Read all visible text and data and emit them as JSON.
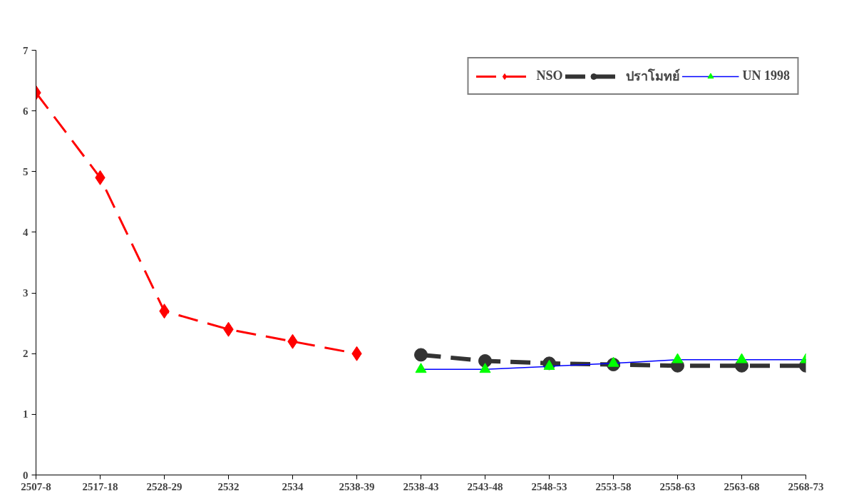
{
  "chart_data": {
    "type": "line",
    "categories": [
      "2507-8",
      "2517-18",
      "2528-29",
      "2532",
      "2534",
      "2538-39",
      "2538-43",
      "2543-48",
      "2548-53",
      "2553-58",
      "2558-63",
      "2563-68",
      "2568-73"
    ],
    "series": [
      {
        "name": "NSO",
        "color": "#ff0000",
        "marker": "diamond",
        "line_style": "dashed",
        "values": [
          6.3,
          4.9,
          2.7,
          2.4,
          2.2,
          2.0,
          null,
          null,
          null,
          null,
          null,
          null,
          null
        ]
      },
      {
        "name": "ปราโมทย์",
        "color": "#333333",
        "marker": "circle",
        "line_style": "dashed",
        "values": [
          null,
          null,
          null,
          null,
          null,
          null,
          1.98,
          1.88,
          1.84,
          1.82,
          1.8,
          1.8,
          1.8
        ]
      },
      {
        "name": "UN 1998",
        "color": "#0000ff",
        "colors": [
          "#00ff00",
          "#00ff00",
          "#00ff00",
          "#00ff00",
          "#00ff00",
          "#00ff00",
          "#00ff00",
          "#00ff00",
          "#00ff00",
          "#00ff00",
          "#00ff00",
          "#00ff00",
          "#00ff00"
        ],
        "marker": "triangle",
        "line_style": "solid",
        "values": [
          null,
          null,
          null,
          null,
          null,
          null,
          1.74,
          1.74,
          1.79,
          1.84,
          1.9,
          1.9,
          1.9
        ]
      }
    ],
    "ylim": [
      0,
      7
    ],
    "yticks": [
      0,
      1,
      2,
      3,
      4,
      5,
      6,
      7
    ],
    "grid": false,
    "legend": "top right"
  }
}
